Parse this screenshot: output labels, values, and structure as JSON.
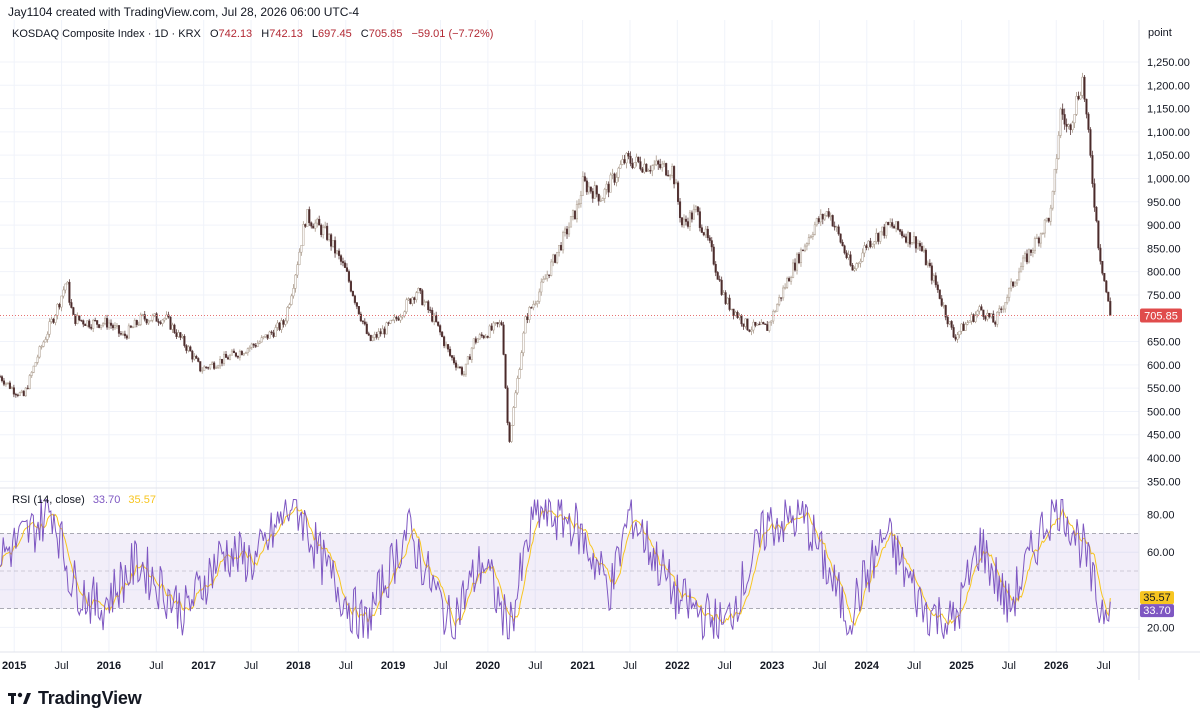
{
  "header": {
    "attribution": "Jay1104 created with TradingView.com, Jul 28, 2026 06:00 UTC-4"
  },
  "legend": {
    "symbol_text": "KOSDAQ Composite Index · 1D · KRX",
    "open_label": "O",
    "open": "742.13",
    "high_label": "H",
    "high": "742.13",
    "low_label": "L",
    "low": "697.45",
    "close_label": "C",
    "close": "705.85",
    "change": "−59.01 (−7.72%)",
    "value_color": "#b22833"
  },
  "rsi_legend": {
    "label": "RSI (14, close)",
    "rsi_value": "33.70",
    "ma_value": "35.57",
    "rsi_color": "#7e57c2",
    "ma_color": "#f7c520"
  },
  "footer": {
    "brand": "TradingView",
    "logo_icon": "tradingview-logo-icon"
  },
  "chart_data": [
    {
      "type": "line",
      "subtype": "candlestick",
      "unit_label": "point",
      "x_tick_labels": [
        "2015",
        "Jul",
        "2016",
        "Jul",
        "2017",
        "Jul",
        "2018",
        "Jul",
        "2019",
        "Jul",
        "2020",
        "Jul",
        "2021",
        "Jul",
        "2022",
        "Jul",
        "2023",
        "Jul",
        "2024",
        "Jul",
        "2025",
        "Jul",
        "2026",
        "Jul"
      ],
      "bold_x_ticks": [
        "2015",
        "2016",
        "2017",
        "2018",
        "2019",
        "2020",
        "2021",
        "2022",
        "2023",
        "2024",
        "2025",
        "2026"
      ],
      "y_ticks": [
        350,
        400,
        450,
        500,
        550,
        600,
        650,
        700,
        750,
        800,
        850,
        900,
        950,
        1000,
        1050,
        1100,
        1150,
        1200,
        1250
      ],
      "y_tick_labels": [
        "350.00",
        "400.00",
        "450.00",
        "500.00",
        "550.00",
        "600.00",
        "650.00",
        "700.00",
        "750.00",
        "800.00",
        "850.00",
        "900.00",
        "950.00",
        "1,000.00",
        "1,050.00",
        "1,100.00",
        "1,150.00",
        "1,200.00",
        "1,250.00"
      ],
      "ylim": [
        340,
        1280
      ],
      "x_range": [
        2014.85,
        2026.62
      ],
      "last_price": 705.85,
      "last_price_label": "705.85",
      "approx_path": [
        {
          "x": 2014.85,
          "y": 575
        },
        {
          "x": 2015.0,
          "y": 545
        },
        {
          "x": 2015.1,
          "y": 532
        },
        {
          "x": 2015.25,
          "y": 620
        },
        {
          "x": 2015.45,
          "y": 720
        },
        {
          "x": 2015.55,
          "y": 780
        },
        {
          "x": 2015.62,
          "y": 700
        },
        {
          "x": 2015.8,
          "y": 690
        },
        {
          "x": 2016.0,
          "y": 690
        },
        {
          "x": 2016.15,
          "y": 660
        },
        {
          "x": 2016.35,
          "y": 700
        },
        {
          "x": 2016.6,
          "y": 700
        },
        {
          "x": 2016.85,
          "y": 630
        },
        {
          "x": 2016.97,
          "y": 590
        },
        {
          "x": 2017.3,
          "y": 620
        },
        {
          "x": 2017.6,
          "y": 650
        },
        {
          "x": 2017.85,
          "y": 690
        },
        {
          "x": 2017.95,
          "y": 780
        },
        {
          "x": 2018.08,
          "y": 920
        },
        {
          "x": 2018.3,
          "y": 880
        },
        {
          "x": 2018.5,
          "y": 800
        },
        {
          "x": 2018.75,
          "y": 650
        },
        {
          "x": 2019.0,
          "y": 690
        },
        {
          "x": 2019.25,
          "y": 760
        },
        {
          "x": 2019.45,
          "y": 690
        },
        {
          "x": 2019.6,
          "y": 620
        },
        {
          "x": 2019.75,
          "y": 580
        },
        {
          "x": 2019.85,
          "y": 650
        },
        {
          "x": 2020.15,
          "y": 690
        },
        {
          "x": 2020.22,
          "y": 430
        },
        {
          "x": 2020.4,
          "y": 700
        },
        {
          "x": 2020.55,
          "y": 760
        },
        {
          "x": 2020.75,
          "y": 850
        },
        {
          "x": 2020.95,
          "y": 940
        },
        {
          "x": 2021.0,
          "y": 990
        },
        {
          "x": 2021.2,
          "y": 960
        },
        {
          "x": 2021.45,
          "y": 1040
        },
        {
          "x": 2021.65,
          "y": 1030
        },
        {
          "x": 2021.95,
          "y": 1020
        },
        {
          "x": 2022.05,
          "y": 900
        },
        {
          "x": 2022.2,
          "y": 930
        },
        {
          "x": 2022.35,
          "y": 850
        },
        {
          "x": 2022.5,
          "y": 740
        },
        {
          "x": 2022.75,
          "y": 680
        },
        {
          "x": 2022.95,
          "y": 680
        },
        {
          "x": 2023.2,
          "y": 800
        },
        {
          "x": 2023.45,
          "y": 900
        },
        {
          "x": 2023.6,
          "y": 930
        },
        {
          "x": 2023.85,
          "y": 800
        },
        {
          "x": 2024.0,
          "y": 860
        },
        {
          "x": 2024.25,
          "y": 900
        },
        {
          "x": 2024.55,
          "y": 860
        },
        {
          "x": 2024.75,
          "y": 760
        },
        {
          "x": 2024.92,
          "y": 660
        },
        {
          "x": 2025.2,
          "y": 720
        },
        {
          "x": 2025.35,
          "y": 690
        },
        {
          "x": 2025.6,
          "y": 800
        },
        {
          "x": 2025.8,
          "y": 870
        },
        {
          "x": 2025.95,
          "y": 930
        },
        {
          "x": 2026.05,
          "y": 1150
        },
        {
          "x": 2026.12,
          "y": 1100
        },
        {
          "x": 2026.28,
          "y": 1215
        },
        {
          "x": 2026.38,
          "y": 1000
        },
        {
          "x": 2026.45,
          "y": 850
        },
        {
          "x": 2026.57,
          "y": 706
        }
      ]
    },
    {
      "type": "line",
      "title": "RSI (14, close)",
      "y_ticks": [
        20,
        40,
        60,
        80
      ],
      "y_tick_labels": [
        "20.00",
        "",
        "60.00",
        "80.00"
      ],
      "ylim": [
        8,
        92
      ],
      "bands": [
        30,
        50,
        70
      ],
      "series": [
        {
          "name": "RSI",
          "last_value": 33.7,
          "last_label": "33.70",
          "color": "#7e57c2"
        },
        {
          "name": "MA",
          "last_value": 35.57,
          "last_label": "35.57",
          "color": "#f7c520"
        }
      ],
      "approx_rsi_path": [
        {
          "x": 2014.85,
          "y": 58
        },
        {
          "x": 2015.2,
          "y": 72
        },
        {
          "x": 2015.4,
          "y": 84
        },
        {
          "x": 2015.6,
          "y": 45
        },
        {
          "x": 2015.9,
          "y": 30
        },
        {
          "x": 2016.3,
          "y": 55
        },
        {
          "x": 2016.8,
          "y": 28
        },
        {
          "x": 2017.2,
          "y": 60
        },
        {
          "x": 2017.55,
          "y": 55
        },
        {
          "x": 2017.95,
          "y": 88
        },
        {
          "x": 2018.3,
          "y": 50
        },
        {
          "x": 2018.7,
          "y": 20
        },
        {
          "x": 2019.15,
          "y": 72
        },
        {
          "x": 2019.6,
          "y": 22
        },
        {
          "x": 2019.95,
          "y": 56
        },
        {
          "x": 2020.22,
          "y": 18
        },
        {
          "x": 2020.5,
          "y": 82
        },
        {
          "x": 2020.9,
          "y": 76
        },
        {
          "x": 2021.3,
          "y": 40
        },
        {
          "x": 2021.5,
          "y": 82
        },
        {
          "x": 2022.0,
          "y": 35
        },
        {
          "x": 2022.5,
          "y": 20
        },
        {
          "x": 2022.95,
          "y": 75
        },
        {
          "x": 2023.35,
          "y": 78
        },
        {
          "x": 2023.8,
          "y": 25
        },
        {
          "x": 2024.2,
          "y": 70
        },
        {
          "x": 2024.6,
          "y": 30
        },
        {
          "x": 2024.92,
          "y": 22
        },
        {
          "x": 2025.2,
          "y": 65
        },
        {
          "x": 2025.5,
          "y": 30
        },
        {
          "x": 2025.9,
          "y": 78
        },
        {
          "x": 2026.05,
          "y": 86
        },
        {
          "x": 2026.3,
          "y": 60
        },
        {
          "x": 2026.45,
          "y": 30
        },
        {
          "x": 2026.57,
          "y": 33.7
        }
      ]
    }
  ]
}
